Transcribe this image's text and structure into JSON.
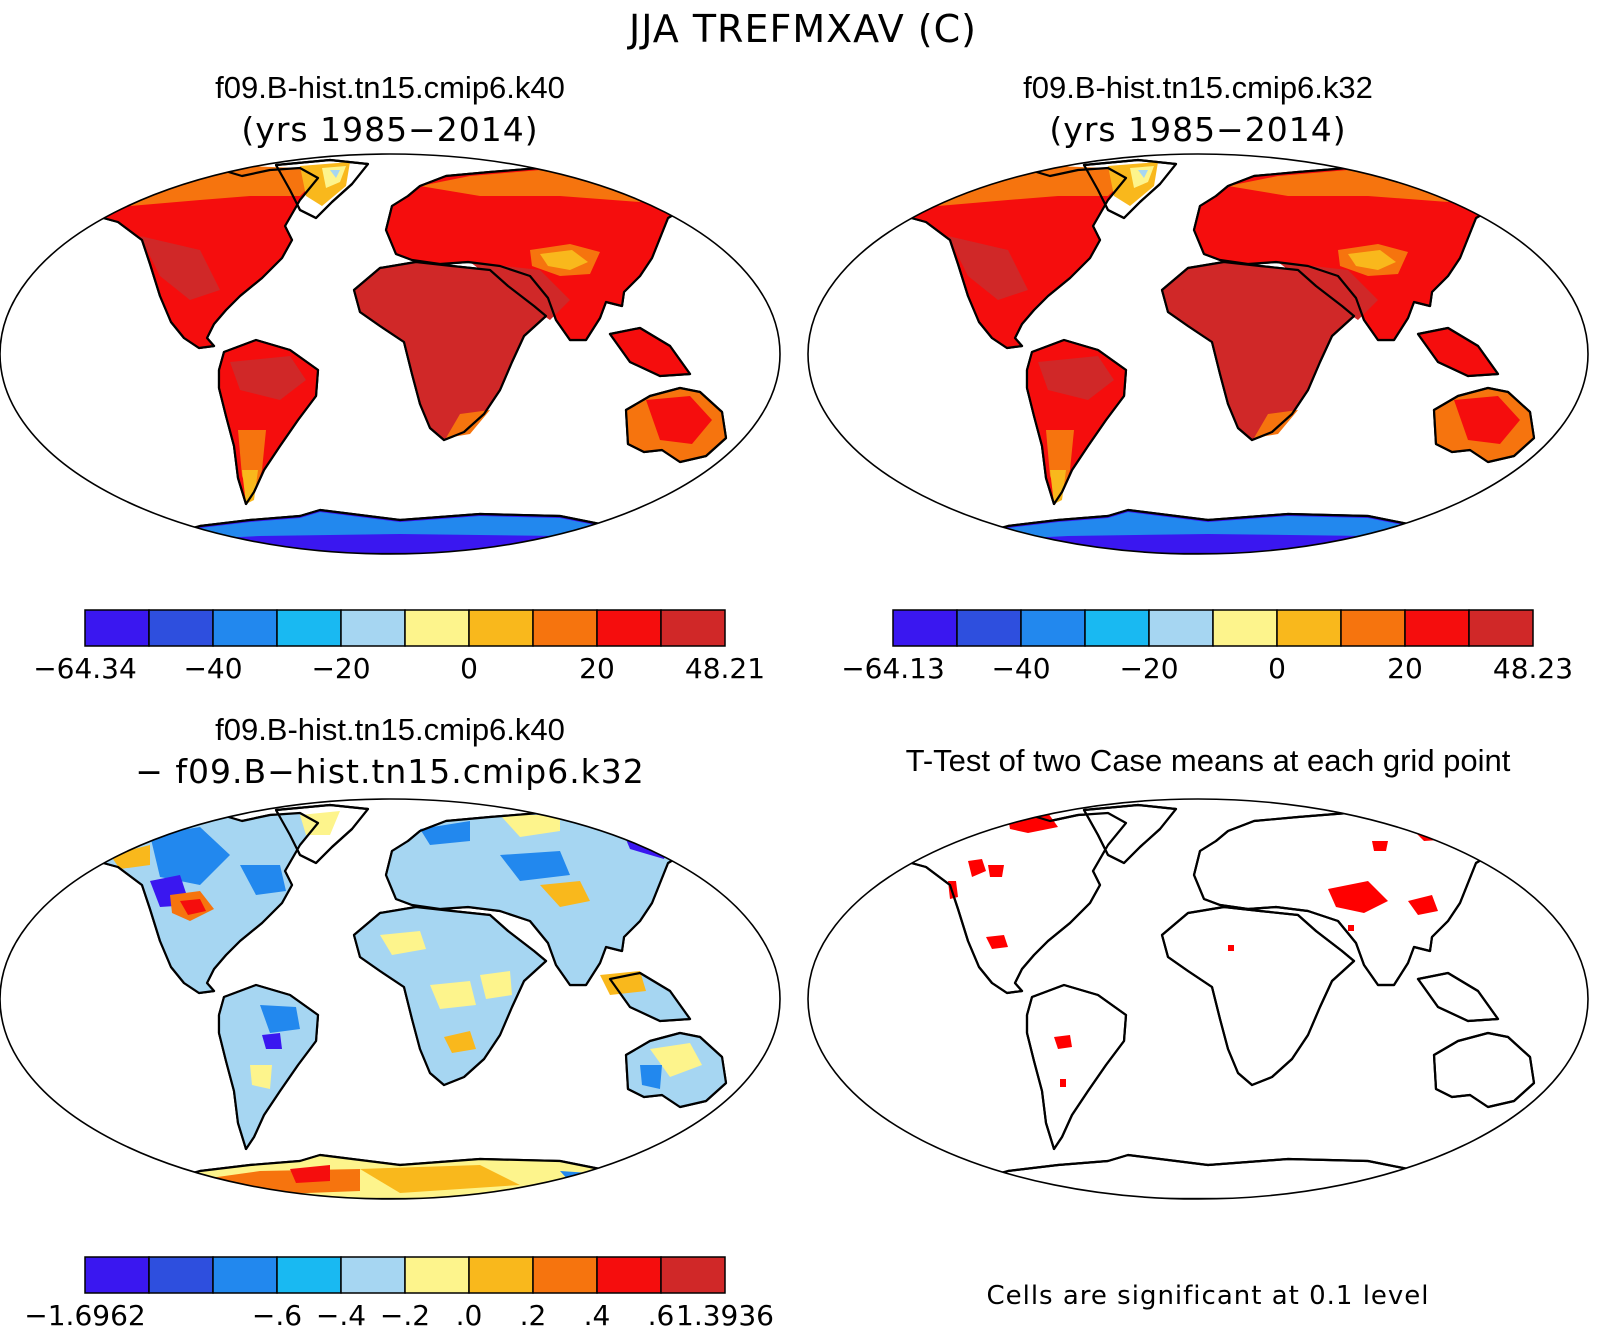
{
  "figure_title": "JJA TREFMXAV (C)",
  "panels": {
    "case1": {
      "title": "f09.B-hist.tn15.cmip6.k40",
      "subtitle": "(yrs 1985−2014)",
      "colorbar": {
        "colors": [
          "#3a17f0",
          "#2e4fde",
          "#2288ee",
          "#19b9f2",
          "#a6d6f2",
          "#fdf48c",
          "#f9b81c",
          "#f6740e",
          "#f50d0d",
          "#d02828"
        ],
        "tick_labels": [
          "−64.34",
          "−40",
          "−20",
          "0",
          "20",
          "48.21"
        ],
        "min": -64.34,
        "max": 48.21
      }
    },
    "case2": {
      "title": "f09.B-hist.tn15.cmip6.k32",
      "subtitle": "(yrs 1985−2014)",
      "colorbar": {
        "colors": [
          "#3a17f0",
          "#2e4fde",
          "#2288ee",
          "#19b9f2",
          "#a6d6f2",
          "#fdf48c",
          "#f9b81c",
          "#f6740e",
          "#f50d0d",
          "#d02828"
        ],
        "tick_labels": [
          "−64.13",
          "−40",
          "−20",
          "0",
          "20",
          "48.23"
        ],
        "min": -64.13,
        "max": 48.23
      }
    },
    "difference": {
      "title": "f09.B-hist.tn15.cmip6.k40",
      "subtitle": "− f09.B−hist.tn15.cmip6.k32",
      "colorbar": {
        "colors": [
          "#3a17f0",
          "#2e4fde",
          "#2288ee",
          "#19b9f2",
          "#a6d6f2",
          "#fdf48c",
          "#f9b81c",
          "#f6740e",
          "#f50d0d",
          "#d02828"
        ],
        "tick_labels": [
          "−1.6962",
          "−.6",
          "−.4",
          "−.2",
          ".0",
          ".2",
          ".4",
          ".6",
          "1.3936"
        ],
        "min": -1.6962,
        "max": 1.3936
      }
    },
    "ttest": {
      "title": "T-Test of two Case means at each grid point",
      "note": "Cells are significant at 0.1 level",
      "significance_color": "#ff0000"
    }
  },
  "map_colors": {
    "hot": "#d02828",
    "warm": "#f50d0d",
    "orange": "#f6740e",
    "amber": "#f9b81c",
    "pale_yellow": "#fdf48c",
    "light_blue": "#a6d6f2",
    "blue": "#2288ee",
    "deep_blue": "#3a17f0"
  }
}
